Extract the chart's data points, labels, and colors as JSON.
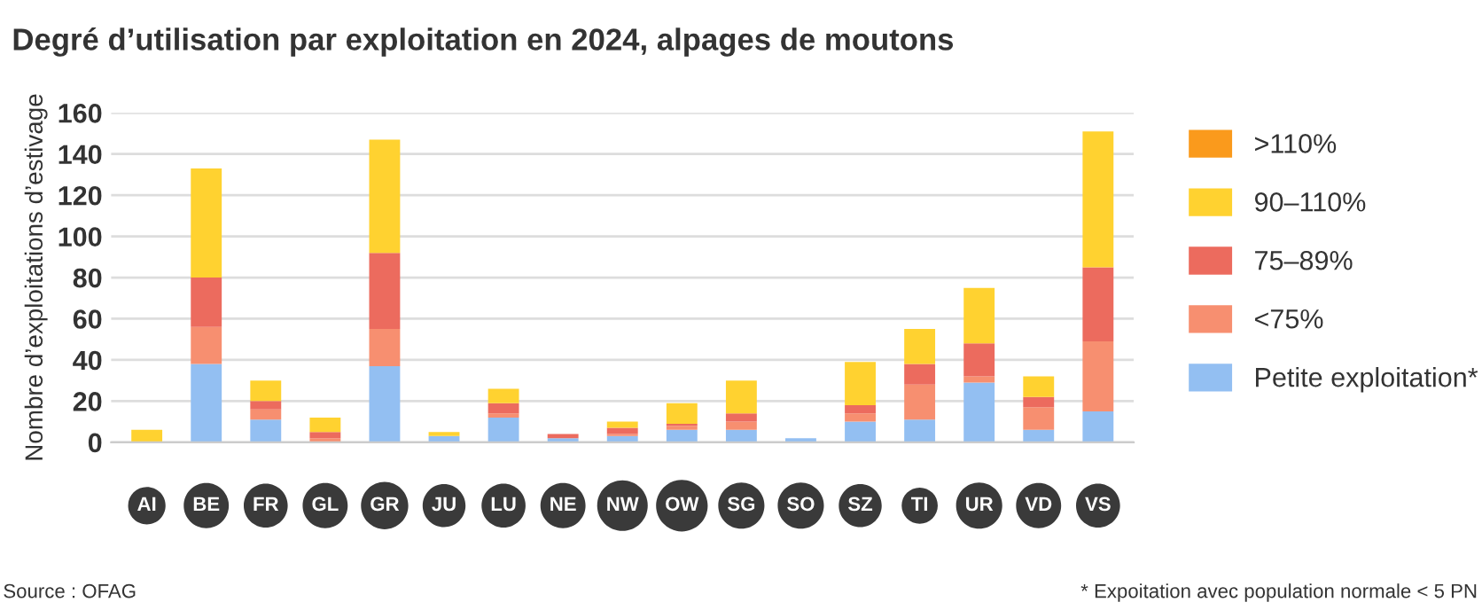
{
  "chart_data": {
    "type": "bar",
    "stacked": true,
    "title": "Degré d’utilisation par exploitation en 2024, alpages de moutons",
    "ylabel": "Nombre d’exploitations d’estivage",
    "categories": [
      "AI",
      "BE",
      "FR",
      "GL",
      "GR",
      "JU",
      "LU",
      "NE",
      "NW",
      "OW",
      "SG",
      "SO",
      "SZ",
      "TI",
      "UR",
      "VD",
      "VS"
    ],
    "series": [
      {
        "name": "Petite exploitation*",
        "color": "#93bff2",
        "values": [
          0,
          38,
          11,
          0,
          37,
          3,
          12,
          2,
          3,
          6,
          6,
          2,
          10,
          11,
          29,
          6,
          15
        ]
      },
      {
        "name": "<75%",
        "color": "#f78f70",
        "values": [
          0,
          18,
          5,
          2,
          18,
          0,
          2,
          0,
          1,
          2,
          4,
          0,
          4,
          17,
          3,
          11,
          34
        ]
      },
      {
        "name": "75–89%",
        "color": "#ec6b5e",
        "values": [
          0,
          24,
          4,
          3,
          37,
          0,
          5,
          2,
          3,
          1,
          4,
          0,
          4,
          10,
          16,
          5,
          36
        ]
      },
      {
        "name": "90–110%",
        "color": "#ffd230",
        "values": [
          6,
          53,
          10,
          7,
          55,
          2,
          7,
          0,
          3,
          10,
          16,
          0,
          21,
          17,
          27,
          10,
          66
        ]
      },
      {
        "name": ">110%",
        "color": "#fa9a1c",
        "values": [
          0,
          0,
          0,
          0,
          0,
          0,
          0,
          0,
          0,
          0,
          0,
          0,
          0,
          0,
          0,
          0,
          0
        ]
      }
    ],
    "ylim": [
      0,
      160
    ],
    "yticks": [
      0,
      20,
      40,
      60,
      80,
      100,
      120,
      140,
      160
    ],
    "grid": "y",
    "legend": "right",
    "annotations": [
      "Source : OFAG",
      "* Expoitation avec population normale < 5 PN"
    ]
  }
}
